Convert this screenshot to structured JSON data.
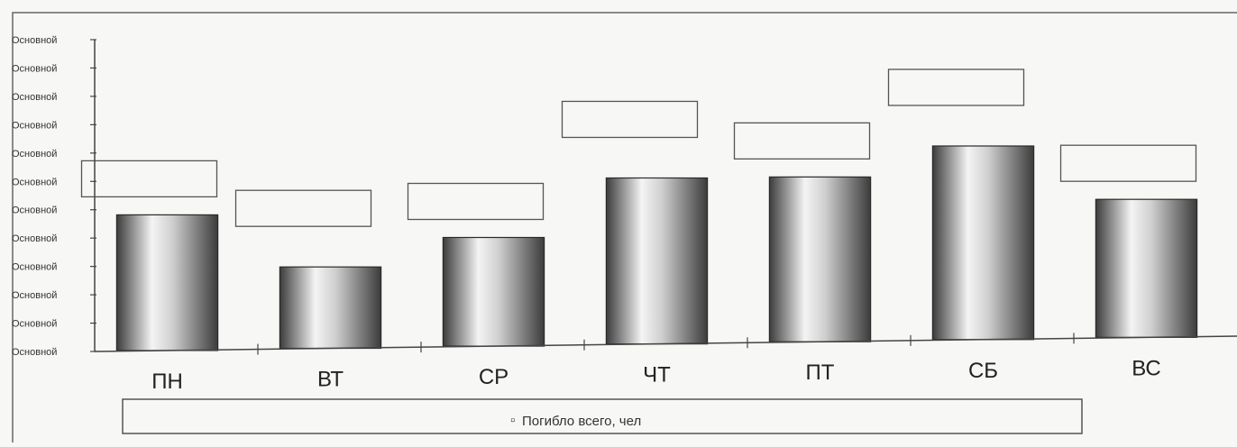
{
  "chart_data": {
    "type": "bar",
    "categories": [
      "ПН",
      "ВТ",
      "СР",
      "ЧТ",
      "ПТ",
      "СБ",
      "ВС"
    ],
    "series": [
      {
        "name": "Погибло всего, чел",
        "values": [
          4.8,
          2.9,
          3.9,
          6.0,
          6.0,
          7.1,
          5.1
        ]
      }
    ],
    "y_tick_labels": [
      "Основной",
      "Основной",
      "Основной",
      "Основной",
      "Основной",
      "Основной",
      "Основной",
      "Основной",
      "Основной",
      "Основной",
      "Основной",
      "Основной"
    ],
    "ylim": [
      0,
      11
    ],
    "legend_position": "bottom",
    "legend_symbol": "▫",
    "grid": false,
    "colors": {
      "bar_dark": "#3c3c3c",
      "bar_light": "#f4f4f4",
      "axis": "#444444",
      "box_stroke": "#555555",
      "background": "#f7f7f5"
    }
  }
}
